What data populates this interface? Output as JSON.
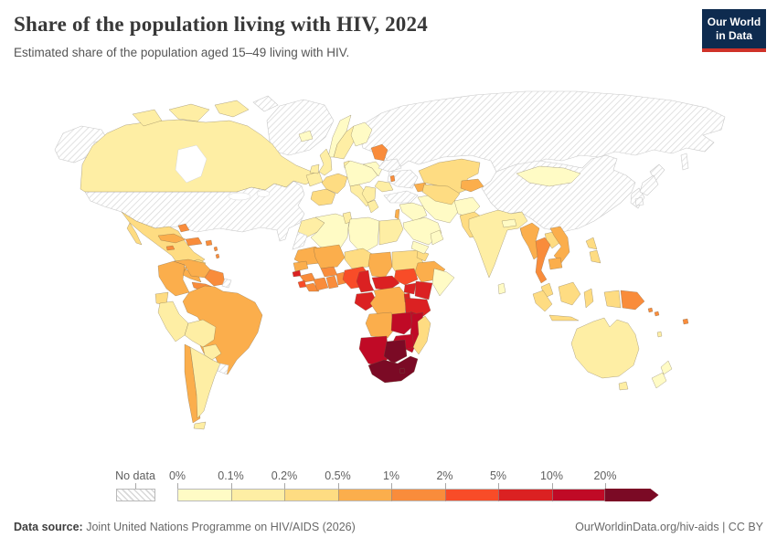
{
  "header": {
    "title": "Share of the population living with HIV, 2024",
    "subtitle": "Estimated share of the population aged 15–49 living with HIV."
  },
  "logo": {
    "line1": "Our World",
    "line2": "in Data",
    "bg_color": "#0e2b4f",
    "accent_color": "#cf3229"
  },
  "legend": {
    "no_data_label": "No data",
    "tick_labels": [
      "0%",
      "0.1%",
      "0.2%",
      "0.5%",
      "1%",
      "2%",
      "5%",
      "10%",
      "20%"
    ],
    "bin_colors": [
      "#FFFBC5",
      "#FEEEA4",
      "#FEDC82",
      "#FBAE4C",
      "#F98C3B",
      "#F84C28",
      "#DB2122",
      "#C00A26",
      "#7B0A25"
    ]
  },
  "footer": {
    "source_label": "Data source:",
    "source_value": " Joint United Nations Programme on HIV/AIDS (2026)",
    "rights": "OurWorldinData.org/hiv-aids | CC BY"
  },
  "chart_data": {
    "type": "choropleth",
    "title": "Share of the population living with HIV, 2024",
    "unit_description": "Estimated share of the population aged 15–49 living with HIV (%)",
    "year": "2024",
    "bins": [
      "0–0.1%",
      "0.1–0.2%",
      "0.2–0.5%",
      "0.5–1%",
      "1–2%",
      "2–5%",
      "5–10%",
      "10–20%",
      "20%+"
    ],
    "no_data": {
      "label": "No data",
      "style": "diagonal-hatch"
    },
    "regions": {
      "alaska": "no-data",
      "usa": "no-data",
      "greenland": "no-data",
      "arctic-island": "no-data",
      "canada": 1,
      "newfoundland": 1,
      "mexico": 2,
      "yucatan": 2,
      "guatemala": 3,
      "honduras": 3,
      "costa-rica-panama": 4,
      "cuba": 3,
      "jamaica": 4,
      "hispaniola": 4,
      "puerto-rico": 4,
      "bahamas": 4,
      "lesser-antilles": 4,
      "colombia": 3,
      "venezuela": 3,
      "guyana": 4,
      "french-guiana": "no-data",
      "brazil": 3,
      "ecuador": 2,
      "peru": 1,
      "bolivia": 1,
      "paraguay": 1,
      "chile": 3,
      "argentina": 1,
      "uruguay": "no-data",
      "iceland": 0,
      "norway": 0,
      "sweden": 1,
      "finland": 0,
      "denmark": 1,
      "uk": 1,
      "ireland": 1,
      "france": 2,
      "iberia": 2,
      "central-europe": 0,
      "italy": 1,
      "poland": 0,
      "baltics": 4,
      "belarus": "no-data",
      "ukraine": "no-data",
      "romania": 1,
      "moldova": 4,
      "balkans": 1,
      "greece": 1,
      "russia": "no-data",
      "sakhalin": "no-data",
      "morocco": 1,
      "western-sahara": "no-data",
      "algeria": 0,
      "tunisia": 1,
      "libya": 0,
      "egypt": 1,
      "mauritania": 3,
      "senegal": 3,
      "guinea-bissau": 6,
      "guinea": 4,
      "sierra-leone": 5,
      "liberia": 4,
      "mali": 3,
      "burkina-faso": 4,
      "ivory-coast": 4,
      "ghana": 4,
      "togo-benin": 4,
      "niger": 2,
      "nigeria": 5,
      "chad": 3,
      "sudan": 2,
      "eritrea": 2,
      "ethiopia": 3,
      "somalia": 0,
      "south-sudan": 5,
      "central-african-republic": 6,
      "cameroon": 6,
      "gabon-congo": 6,
      "drc": 3,
      "uganda": 6,
      "kenya": 6,
      "rwanda-burundi": 6,
      "tanzania": 6,
      "angola": 3,
      "zambia": 7,
      "malawi": 7,
      "mozambique": 7,
      "zimbabwe": 7,
      "namibia": 7,
      "botswana": 8,
      "south-africa": 8,
      "lesotho": 8,
      "madagascar": 2,
      "turkey": "no-data",
      "caucasus": 3,
      "syria-iraq": 0,
      "israel-lebanon": 3,
      "saudi-arabia": 0,
      "yemen": 0,
      "oman": 0,
      "iran": 0,
      "afghanistan": 0,
      "pakistan": 2,
      "kazakhstan": 2,
      "uzbekistan-turkmenistan": 2,
      "kyrgyzstan-tajikistan": 3,
      "india": 1,
      "nepal": 0,
      "bangladesh": 1,
      "sri-lanka": 0,
      "china": "no-data",
      "mongolia": 0,
      "koreas": "no-data",
      "japan": "no-data",
      "myanmar": 3,
      "thailand": 4,
      "laos": 2,
      "vietnam": 3,
      "cambodia": 3,
      "malaysia": 2,
      "philippines": 2,
      "indonesia": 2,
      "papua-new-guinea": 4,
      "solomon-islands": 4,
      "fiji": 4,
      "vanuatu": 1,
      "australia": 1,
      "tasmania": 1,
      "new-zealand": 0
    }
  }
}
